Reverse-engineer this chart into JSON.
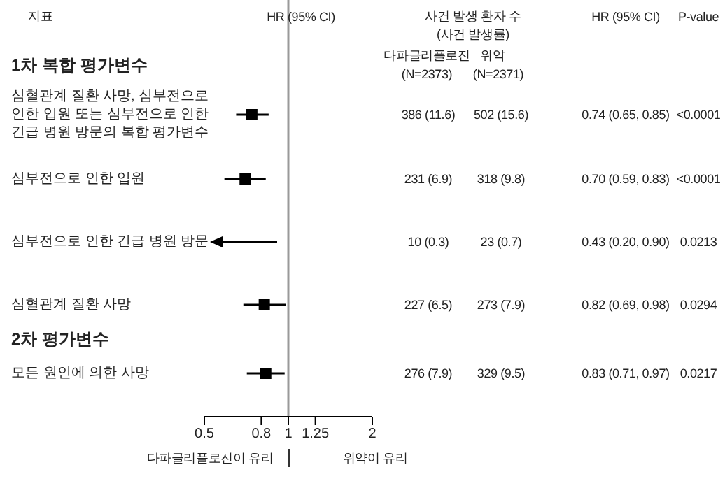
{
  "chart_data": {
    "type": "scatter",
    "orientation": "horizontal",
    "categories": [
      "1차 복합 평가변수",
      "심혈관계 질환 사망, 심부전으로 인한 입원 또는 심부전으로 인한 긴급 병원 방문의 복합 평가변수",
      "심부전으로 인한 입원",
      "심부전으로 인한 긴급 병원 방문",
      "심혈관계 질환 사망",
      "2차 평가변수",
      "모든 원인에 의한 사망"
    ],
    "values": [
      null,
      0.74,
      0.7,
      null,
      0.82,
      null,
      0.83
    ],
    "errors": [
      null,
      [
        0.65,
        0.85
      ],
      [
        0.59,
        0.83
      ],
      null,
      [
        0.69,
        0.98
      ],
      null,
      [
        0.71,
        0.97
      ]
    ],
    "value_labels": [
      null,
      "0.74 (0.65, 0.85)",
      "0.70 (0.59, 0.83)",
      "0.43 (0.20, 0.90)",
      "0.82 (0.69, 0.98)",
      null,
      "0.83 (0.71, 0.97)"
    ],
    "color": "#000000",
    "marker": "square",
    "log": "x",
    "xlim": [
      0.5,
      2
    ],
    "xticks": [
      0.5,
      0.8,
      1,
      1.25,
      2
    ],
    "ref_lines": [
      {
        "axis": "x",
        "value": 1,
        "color": "#999999"
      }
    ],
    "annotations": [
      "지표",
      "HR (95% CI)",
      "사건 발생 환자 수",
      "(사건 발생률)",
      "HR (95% CI)",
      "P-value",
      "다파글리플로진",
      "(N=2373)",
      "위약",
      "(N=2371)",
      "다파글리플로진이 유리",
      "위약이 유리",
      "386 (11.6)",
      "502 (15.6)",
      "<0.0001",
      "231 (6.9)",
      "318 (9.8)",
      "<0.0001",
      "10 (0.3)",
      "23 (0.7)",
      "0.0213",
      "227 (6.5)",
      "273 (7.9)",
      "0.0294",
      "276 (7.9)",
      "329 (9.5)",
      "0.0217"
    ]
  }
}
